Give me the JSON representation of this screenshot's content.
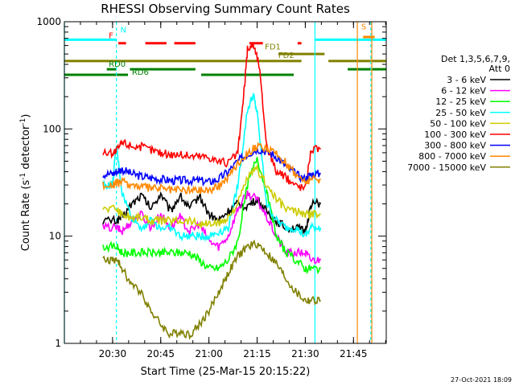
{
  "chart_data": {
    "type": "line",
    "title": "RHESSI Observing Summary Count Rates",
    "xlabel": "Start Time (25-Mar-15 20:15:22)",
    "ylabel": "Count Rate (s",
    "ylabel_sup": "-1",
    "ylabel_tail": " detector",
    "ylabel_end": ")",
    "x_range_min": [
      20.25,
      21.92
    ],
    "y_range": [
      1,
      1000
    ],
    "y_scale": "log",
    "x_ticks": [
      {
        "min": 20.5,
        "label": "20:30"
      },
      {
        "min": 20.75,
        "label": "20:45"
      },
      {
        "min": 21.0,
        "label": "21:00"
      },
      {
        "min": 21.25,
        "label": "21:15"
      },
      {
        "min": 21.5,
        "label": "21:30"
      },
      {
        "min": 21.75,
        "label": "21:45"
      }
    ],
    "y_ticks": [
      {
        "v": 1,
        "label": "1"
      },
      {
        "v": 10,
        "label": "10"
      },
      {
        "v": 100,
        "label": "100"
      },
      {
        "v": 1000,
        "label": "1000"
      }
    ],
    "legend_header": [
      "Det 1,3,5,6,7,9,",
      "Att 0"
    ],
    "legend_placement": "right",
    "footer_date": "27-Oct-2021 18:09",
    "series": [
      {
        "name": "3 - 6 keV",
        "color": "#000000",
        "x": [
          20.45,
          20.52,
          20.55,
          20.6,
          20.65,
          20.7,
          20.75,
          20.8,
          20.85,
          20.9,
          20.95,
          21.0,
          21.05,
          21.1,
          21.15,
          21.2,
          21.25,
          21.3,
          21.35,
          21.4,
          21.45,
          21.5,
          21.53,
          21.58
        ],
        "y": [
          14,
          14,
          15,
          20,
          24,
          18,
          25,
          17,
          24,
          18,
          24,
          16,
          14,
          17,
          20,
          19,
          22,
          17,
          14,
          12,
          12,
          11,
          20,
          20
        ]
      },
      {
        "name": "6 - 12 keV",
        "color": "#ff00ff",
        "x": [
          20.45,
          20.52,
          20.55,
          20.6,
          20.65,
          20.7,
          20.75,
          20.8,
          20.85,
          20.9,
          20.95,
          21.0,
          21.05,
          21.1,
          21.15,
          21.2,
          21.25,
          21.3,
          21.35,
          21.4,
          21.45,
          21.5,
          21.53,
          21.58
        ],
        "y": [
          12,
          12,
          11,
          14,
          16,
          12,
          16,
          12,
          15,
          11,
          13,
          9,
          8,
          10,
          18,
          25,
          22,
          15,
          10,
          7,
          7,
          7,
          6,
          6
        ]
      },
      {
        "name": "12 - 25 keV",
        "color": "#00ff00",
        "x": [
          20.45,
          20.52,
          20.55,
          20.6,
          20.65,
          20.7,
          20.75,
          20.8,
          20.85,
          20.9,
          20.95,
          21.0,
          21.05,
          21.1,
          21.15,
          21.2,
          21.25,
          21.3,
          21.35,
          21.4,
          21.45,
          21.5,
          21.53,
          21.58
        ],
        "y": [
          8,
          8,
          7,
          7,
          7,
          7,
          7,
          7,
          7,
          7,
          6,
          5,
          5,
          6,
          9,
          30,
          55,
          25,
          10,
          7,
          6,
          5,
          5,
          5
        ]
      },
      {
        "name": "25 - 50 keV",
        "color": "#00ffff",
        "x": [
          20.45,
          20.5,
          20.52,
          20.55,
          20.6,
          20.65,
          20.7,
          20.75,
          20.8,
          20.85,
          20.9,
          20.95,
          21.0,
          21.05,
          21.1,
          21.15,
          21.2,
          21.23,
          21.25,
          21.3,
          21.35,
          21.4,
          21.45,
          21.5,
          21.53,
          21.58
        ],
        "y": [
          30,
          30,
          70,
          25,
          15,
          12,
          14,
          12,
          12,
          10,
          10,
          10,
          10,
          11,
          12,
          30,
          150,
          210,
          140,
          20,
          14,
          12,
          12,
          10,
          12,
          12
        ]
      },
      {
        "name": "50 - 100 keV",
        "color": "#cccc00",
        "x": [
          20.45,
          20.52,
          20.55,
          20.6,
          20.65,
          20.7,
          20.75,
          20.8,
          20.85,
          20.9,
          20.95,
          21.0,
          21.05,
          21.1,
          21.15,
          21.2,
          21.25,
          21.3,
          21.35,
          21.4,
          21.45,
          21.5,
          21.53,
          21.58
        ],
        "y": [
          18,
          18,
          16,
          15,
          15,
          14,
          14,
          14,
          14,
          14,
          13,
          13,
          13,
          15,
          20,
          35,
          42,
          30,
          22,
          18,
          17,
          16,
          16,
          16
        ]
      },
      {
        "name": "100 - 300 keV",
        "color": "#ff0000",
        "x": [
          20.45,
          20.5,
          20.52,
          20.55,
          20.6,
          20.65,
          20.7,
          20.75,
          20.8,
          20.85,
          20.9,
          20.95,
          21.0,
          21.05,
          21.1,
          21.15,
          21.18,
          21.2,
          21.23,
          21.26,
          21.3,
          21.35,
          21.4,
          21.45,
          21.5,
          21.53,
          21.58
        ],
        "y": [
          60,
          60,
          62,
          75,
          70,
          68,
          64,
          60,
          58,
          58,
          56,
          56,
          55,
          50,
          48,
          60,
          200,
          550,
          620,
          400,
          70,
          40,
          35,
          30,
          28,
          65,
          65
        ]
      },
      {
        "name": "300 - 800 keV",
        "color": "#0000ff",
        "x": [
          20.45,
          20.5,
          20.52,
          20.55,
          20.6,
          20.65,
          20.7,
          20.75,
          20.8,
          20.85,
          20.9,
          20.95,
          21.0,
          21.05,
          21.1,
          21.15,
          21.2,
          21.25,
          21.3,
          21.35,
          21.4,
          21.45,
          21.5,
          21.53,
          21.58
        ],
        "y": [
          38,
          38,
          40,
          42,
          38,
          36,
          35,
          34,
          33,
          33,
          33,
          33,
          32,
          34,
          40,
          50,
          58,
          65,
          62,
          55,
          45,
          38,
          34,
          38,
          38
        ]
      },
      {
        "name": "800 - 7000 keV",
        "color": "#ff8800",
        "x": [
          20.45,
          20.5,
          20.52,
          20.55,
          20.6,
          20.65,
          20.7,
          20.75,
          20.8,
          20.85,
          20.9,
          20.95,
          21.0,
          21.05,
          21.1,
          21.15,
          21.2,
          21.25,
          21.3,
          21.35,
          21.4,
          21.45,
          21.5,
          21.53,
          21.58
        ],
        "y": [
          30,
          30,
          31,
          32,
          30,
          29,
          28,
          28,
          27,
          27,
          27,
          27,
          27,
          29,
          36,
          48,
          60,
          68,
          66,
          58,
          48,
          38,
          32,
          34,
          34
        ]
      },
      {
        "name": "7000 - 15000 keV",
        "color": "#808000",
        "x": [
          20.45,
          20.5,
          20.52,
          20.55,
          20.6,
          20.65,
          20.7,
          20.75,
          20.8,
          20.85,
          20.9,
          20.95,
          21.0,
          21.05,
          21.1,
          21.15,
          21.2,
          21.25,
          21.3,
          21.35,
          21.4,
          21.45,
          21.5,
          21.53,
          21.58
        ],
        "y": [
          6,
          6,
          6,
          5,
          3.5,
          3,
          2,
          1.5,
          1.2,
          1.3,
          1.2,
          1.5,
          2,
          3,
          4.5,
          6.5,
          8,
          8.5,
          7,
          5.5,
          4,
          3,
          2.5,
          2.5,
          2.5
        ]
      }
    ],
    "annotations": [
      {
        "label": "F",
        "color": "#ff0000",
        "x_label_min": 20.48,
        "y_label": 700
      },
      {
        "label": "N",
        "color": "#00ffff",
        "x_label_min": 20.54,
        "y_label": 790
      },
      {
        "label": "S",
        "color": "#ff8800",
        "x_label_min": 21.79,
        "y_label": 850
      },
      {
        "label": "FD1",
        "color": "#808000",
        "x_label_min": 21.29,
        "y_label": 550
      },
      {
        "label": "FD2",
        "color": "#808000",
        "x_label_min": 21.36,
        "y_label": 460
      },
      {
        "label": "RD0",
        "color": "#008000",
        "x_label_min": 20.48,
        "y_label": 380
      },
      {
        "label": "RD6",
        "color": "#008000",
        "x_label_min": 20.6,
        "y_label": 320
      }
    ],
    "flag_bars": [
      {
        "color": "#00ffff",
        "y": 680,
        "segments": [
          [
            20.25,
            20.52
          ],
          [
            21.55,
            21.92
          ]
        ]
      },
      {
        "color": "#ff0000",
        "y": 630,
        "segments": [
          [
            20.53,
            20.57
          ],
          [
            20.67,
            20.78
          ],
          [
            20.82,
            20.93
          ],
          [
            21.21,
            21.28
          ],
          [
            21.46,
            21.48
          ]
        ]
      },
      {
        "color": "#ff8800",
        "y": 720,
        "segments": [
          [
            21.8,
            21.86
          ]
        ]
      },
      {
        "color": "#808000",
        "y": 500,
        "segments": [
          [
            21.36,
            21.6
          ]
        ]
      },
      {
        "color": "#808000",
        "y": 430,
        "segments": [
          [
            20.25,
            21.48
          ],
          [
            21.62,
            21.92
          ]
        ]
      },
      {
        "color": "#008000",
        "y": 360,
        "segments": [
          [
            20.47,
            20.52
          ],
          [
            20.59,
            20.93
          ],
          [
            21.72,
            21.92
          ]
        ]
      },
      {
        "color": "#008000",
        "y": 320,
        "segments": [
          [
            20.25,
            20.58
          ],
          [
            20.96,
            21.44
          ]
        ]
      }
    ],
    "vlines": [
      {
        "color": "#00ffff",
        "x": 20.25,
        "dashed": false
      },
      {
        "color": "#00ffff",
        "x": 20.52,
        "dashed": true
      },
      {
        "color": "#00ffff",
        "x": 21.55,
        "dashed": false
      },
      {
        "color": "#ff8800",
        "x": 21.77,
        "dashed": false
      },
      {
        "color": "#00ffff",
        "x": 21.84,
        "dashed": true
      },
      {
        "color": "#ff8800",
        "x": 21.845,
        "dashed": false
      }
    ]
  }
}
